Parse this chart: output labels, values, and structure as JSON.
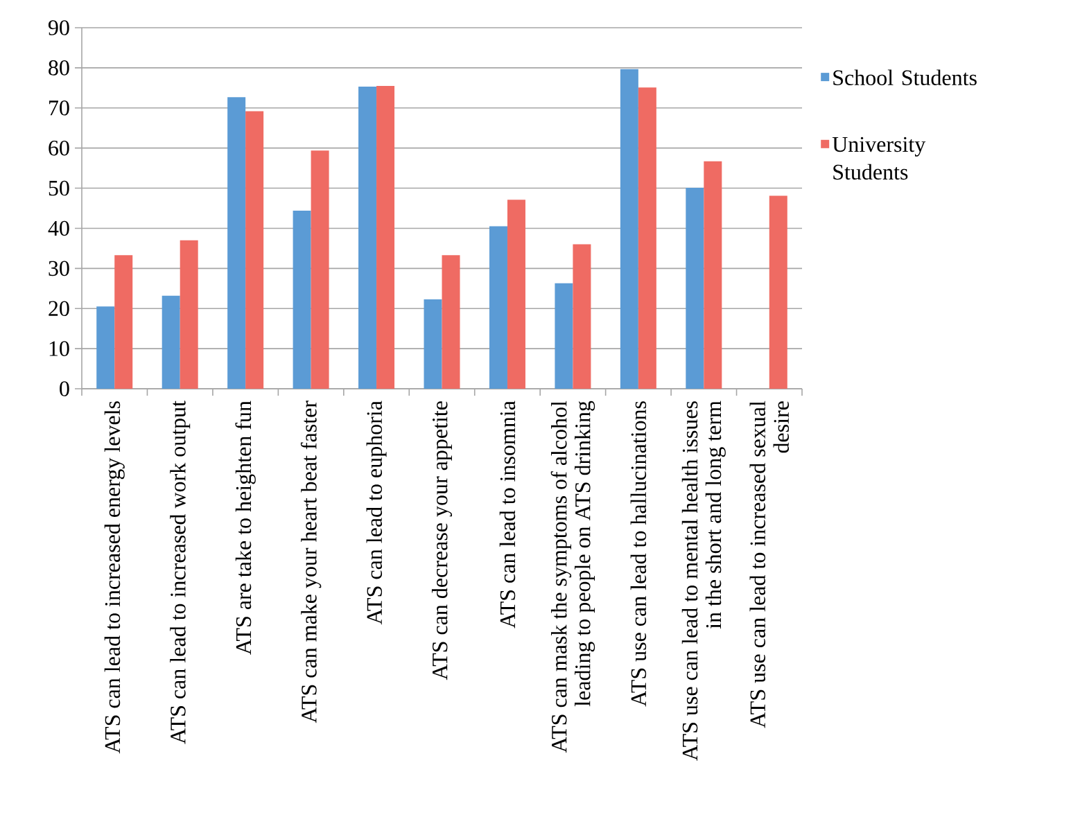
{
  "chart_data": {
    "type": "bar",
    "categories": [
      "ATS can lead to increased energy levels",
      "ATS can lead to increased work output",
      "ATS are take to heighten fun",
      "ATS can make your heart beat faster",
      "ATS can lead to euphoria",
      "ATS can decrease your appetite",
      "ATS can lead to insomnia",
      "ATS can mask the symptoms of alcohol leading to people on ATS drinking",
      "ATS use can lead to hallucinations",
      "ATS use can lead to mental health issues in the short and long term",
      "ATS use can lead to increased sexual desire"
    ],
    "series": [
      {
        "name": "School Students",
        "color": "#5b9bd5",
        "values": [
          20.5,
          23.2,
          72.7,
          44.4,
          75.3,
          22.3,
          40.5,
          26.3,
          79.7,
          50.1,
          0
        ]
      },
      {
        "name": "University Students",
        "color": "#ef6b63",
        "values": [
          33.3,
          37,
          69.2,
          59.4,
          75.5,
          33.3,
          47.1,
          36,
          75.1,
          56.7,
          48.1
        ]
      }
    ],
    "ylim": [
      0,
      90
    ],
    "yticks": [
      0,
      10,
      20,
      30,
      40,
      50,
      60,
      70,
      80,
      90
    ],
    "grid": "y",
    "legend": "right"
  }
}
